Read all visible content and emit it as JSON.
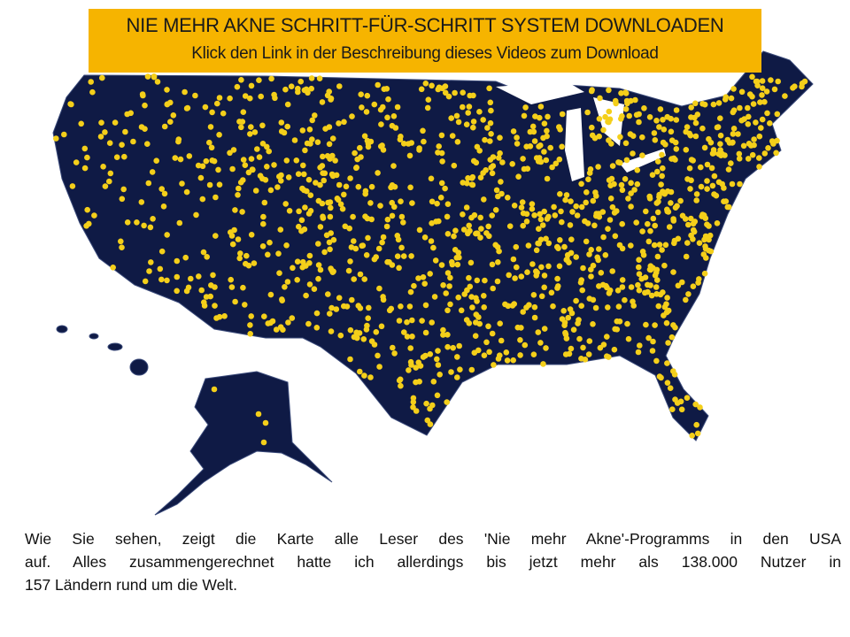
{
  "banner": {
    "line1": "NIE MEHR AKNE SCHRITT-FÜR-SCHRITT SYSTEM DOWNLOADEN",
    "line2": "Klick den Link in der Beschreibung dieses Videos zum Download"
  },
  "paragraph": {
    "lines": [
      "Wie Sie sehen, zeigt die Karte alle Leser des 'Nie mehr Akne'-Programms in den USA",
      "auf. Alles zusammengerechnet hatte ich allerdings bis jetzt mehr als 138.000 Nutzer in",
      "157 Ländern rund um die Welt."
    ]
  }
}
